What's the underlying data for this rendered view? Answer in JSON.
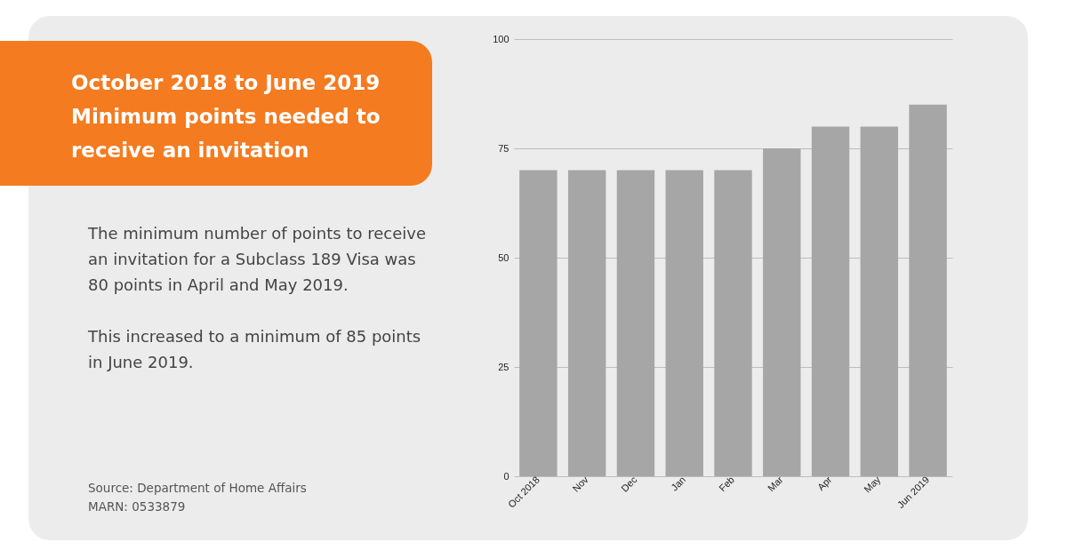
{
  "chart_data": {
    "type": "bar",
    "title": "October 2018 to June 2019 Minimum points needed to receive an invitation",
    "categories": [
      "Oct 2018",
      "Nov",
      "Dec",
      "Jan",
      "Feb",
      "Mar",
      "Apr",
      "May",
      "Jun 2019"
    ],
    "values": [
      70,
      70,
      70,
      70,
      70,
      75,
      80,
      80,
      85
    ],
    "color": "#a6a6a6",
    "ylim": [
      0,
      100
    ],
    "yticks": [
      0,
      25,
      50,
      75,
      100
    ],
    "grid": "y",
    "annotations": [
      "The minimum number of points to receive an invitation for a Subclass 189 Visa was 80 points in April and May 2019.",
      "This increased to a minimum of 85 points in June 2019.",
      "Source: Department of Home Affairs",
      "MARN: 0533879"
    ]
  }
}
